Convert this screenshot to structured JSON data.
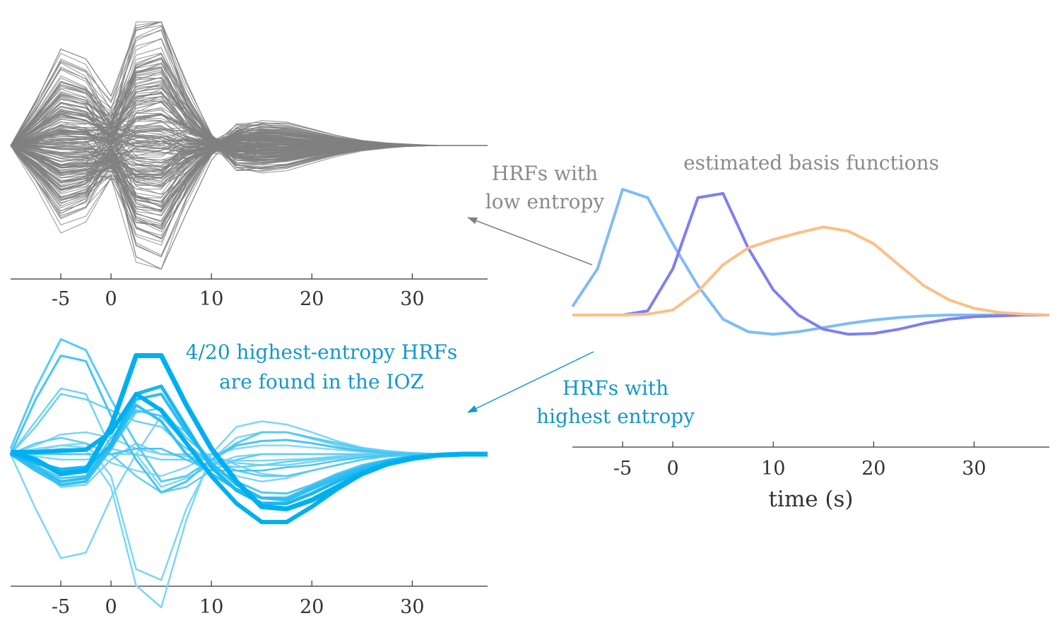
{
  "colors": {
    "gray_traces": "#808080",
    "gray_text": "#8a8a8a",
    "blue_text": "#1597c9",
    "blue_dark": "#00aff0",
    "blue_light": "#b3e6f7",
    "basis_1": "#7fbcf5",
    "basis_2": "#7f7ff0",
    "basis_3": "#fdbf86",
    "axis": "#333333"
  },
  "annotations": {
    "low_entropy": [
      "HRFs with",
      "low entropy"
    ],
    "high_entropy": [
      "HRFs with",
      "highest entropy"
    ],
    "basis_title": "estimated basis functions",
    "ioz_note": [
      "4/20 highest-entropy HRFs",
      "are found in the IOZ"
    ]
  },
  "chart_data": [
    {
      "id": "low-entropy-hrfs",
      "type": "line",
      "title": "",
      "xlabel": "",
      "ylabel": "",
      "xlim": [
        -10,
        37.5
      ],
      "ylim": [
        -1,
        1
      ],
      "xticks": [
        -5,
        0,
        10,
        20,
        30
      ],
      "x": [
        -10,
        -7.5,
        -5,
        -2.5,
        0,
        2.5,
        5,
        7.5,
        10,
        12.5,
        15,
        17.5,
        20,
        22.5,
        25,
        27.5,
        30,
        32.5,
        35,
        37.5
      ],
      "series_count": 200,
      "series_examples": [
        {
          "values": [
            0,
            0.35,
            0.78,
            0.7,
            0.4,
            0.95,
            1.0,
            0.35,
            0.02,
            -0.2,
            -0.18,
            -0.15,
            -0.1,
            -0.06,
            -0.03,
            -0.01,
            0,
            0,
            0,
            0
          ]
        },
        {
          "values": [
            0,
            -0.28,
            -0.55,
            -0.45,
            -0.05,
            -0.9,
            -1.0,
            -0.55,
            -0.12,
            0.12,
            0.18,
            0.18,
            0.13,
            0.08,
            0.04,
            0.02,
            0.01,
            0,
            0,
            0
          ]
        },
        {
          "values": [
            0,
            0.1,
            0.25,
            0.2,
            0.1,
            0.3,
            0.35,
            0.15,
            0.0,
            -0.1,
            -0.12,
            -0.1,
            -0.07,
            -0.04,
            -0.02,
            -0.01,
            0,
            0,
            0,
            0
          ]
        },
        {
          "values": [
            0,
            -0.15,
            -0.3,
            -0.25,
            0.1,
            -0.4,
            -0.5,
            -0.3,
            -0.05,
            0.05,
            0.08,
            0.08,
            0.06,
            0.04,
            0.02,
            0.01,
            0,
            0,
            0,
            0
          ]
        }
      ]
    },
    {
      "id": "basis-functions",
      "type": "line",
      "title": "estimated basis functions",
      "xlabel": "time (s)",
      "ylabel": "",
      "xlim": [
        -10,
        37.5
      ],
      "ylim": [
        -0.25,
        1.6
      ],
      "xticks": [
        -5,
        0,
        10,
        20,
        30
      ],
      "x": [
        -10,
        -7.5,
        -5,
        -2.5,
        0,
        2.5,
        5,
        7.5,
        10,
        12.5,
        15,
        17.5,
        20,
        22.5,
        25,
        27.5,
        30,
        32.5,
        35,
        37.5
      ],
      "series": [
        {
          "values": [
            0.1,
            0.55,
            1.5,
            1.4,
            0.85,
            0.35,
            -0.05,
            -0.2,
            -0.23,
            -0.2,
            -0.15,
            -0.1,
            -0.06,
            -0.03,
            -0.01,
            0,
            0,
            0,
            0,
            0
          ]
        },
        {
          "values": [
            0,
            0,
            0,
            0.05,
            0.55,
            1.4,
            1.45,
            0.8,
            0.3,
            0.0,
            -0.17,
            -0.23,
            -0.22,
            -0.17,
            -0.1,
            -0.05,
            -0.02,
            -0.01,
            0,
            0
          ]
        },
        {
          "values": [
            0,
            0,
            0,
            0.01,
            0.06,
            0.28,
            0.6,
            0.8,
            0.9,
            0.98,
            1.05,
            1.0,
            0.85,
            0.6,
            0.35,
            0.18,
            0.08,
            0.03,
            0.01,
            0
          ]
        }
      ]
    },
    {
      "id": "high-entropy-hrfs",
      "type": "line",
      "title": "",
      "xlabel": "",
      "ylabel": "",
      "xlim": [
        -10,
        37.5
      ],
      "ylim": [
        -1,
        1
      ],
      "xticks": [
        -5,
        0,
        10,
        20,
        30
      ],
      "x": [
        -10,
        -7.5,
        -5,
        -2.5,
        0,
        2.5,
        5,
        7.5,
        10,
        12.5,
        15,
        17.5,
        20,
        22.5,
        25,
        27.5,
        30,
        32.5,
        35,
        37.5
      ],
      "series": [
        {
          "values": [
            0.02,
            -0.05,
            -0.18,
            -0.15,
            0.25,
            0.9,
            0.9,
            0.45,
            0.05,
            -0.25,
            -0.48,
            -0.5,
            -0.42,
            -0.3,
            -0.18,
            -0.09,
            -0.04,
            -0.01,
            0,
            0
          ],
          "width": 7,
          "shade": 1.0
        },
        {
          "values": [
            0.02,
            0.02,
            0.03,
            0.04,
            0.2,
            0.55,
            0.4,
            0.1,
            -0.2,
            -0.45,
            -0.62,
            -0.62,
            -0.48,
            -0.32,
            -0.18,
            -0.09,
            -0.04,
            -0.01,
            0,
            0
          ],
          "width": 6,
          "shade": 1.0
        },
        {
          "values": [
            0.0,
            -0.08,
            -0.14,
            -0.12,
            0.08,
            0.55,
            0.62,
            0.25,
            -0.12,
            -0.33,
            -0.45,
            -0.45,
            -0.36,
            -0.25,
            -0.15,
            -0.07,
            -0.03,
            -0.01,
            0,
            0
          ],
          "width": 5,
          "shade": 0.85
        },
        {
          "values": [
            0.0,
            -0.15,
            -0.28,
            -0.25,
            0.05,
            0.45,
            0.3,
            0.0,
            -0.18,
            -0.32,
            -0.4,
            -0.4,
            -0.3,
            -0.2,
            -0.12,
            -0.06,
            -0.02,
            -0.01,
            0,
            0
          ],
          "width": 4,
          "shade": 0.7
        },
        {
          "values": [
            0.05,
            0.6,
            1.05,
            0.95,
            0.5,
            0.1,
            -0.25,
            -0.2,
            -0.05,
            0.1,
            0.2,
            0.2,
            0.15,
            0.1,
            0.05,
            0.02,
            0.01,
            0,
            0,
            0
          ],
          "width": 3,
          "shade": 0.5
        },
        {
          "values": [
            0.0,
            0.5,
            0.9,
            0.85,
            0.35,
            -0.05,
            -0.35,
            -0.25,
            -0.05,
            0.08,
            0.12,
            0.13,
            0.1,
            0.06,
            0.03,
            0.01,
            0,
            0,
            0,
            0
          ],
          "width": 3,
          "shade": 0.6
        },
        {
          "values": [
            0.0,
            0.25,
            0.55,
            0.5,
            0.4,
            0.3,
            0.25,
            0.05,
            -0.08,
            -0.12,
            -0.1,
            -0.07,
            -0.05,
            -0.03,
            -0.01,
            0,
            0,
            0,
            0,
            0
          ],
          "width": 2.5,
          "shade": 0.4
        },
        {
          "values": [
            0.0,
            -0.5,
            -0.95,
            -0.9,
            -0.4,
            0.0,
            0.35,
            0.2,
            -0.05,
            -0.2,
            -0.25,
            -0.22,
            -0.15,
            -0.1,
            -0.05,
            -0.02,
            -0.01,
            0,
            0,
            0
          ],
          "width": 2.5,
          "shade": 0.3
        },
        {
          "values": [
            0.0,
            0.02,
            0.05,
            0.04,
            -0.3,
            -1.2,
            -1.4,
            -0.6,
            0.0,
            0.25,
            0.3,
            0.27,
            0.2,
            0.12,
            0.06,
            0.03,
            0.01,
            0,
            0,
            0
          ],
          "width": 2.5,
          "shade": 0.3
        },
        {
          "values": [
            0.0,
            0.03,
            0.08,
            0.1,
            -0.2,
            -1.05,
            -1.15,
            -0.5,
            -0.05,
            0.15,
            0.2,
            0.2,
            0.14,
            0.08,
            0.04,
            0.02,
            0.01,
            0,
            0,
            0
          ],
          "width": 2.5,
          "shade": 0.3
        },
        {
          "values": [
            0.0,
            0.1,
            0.15,
            0.1,
            0.0,
            -0.2,
            -0.35,
            -0.3,
            -0.15,
            -0.05,
            0.0,
            0.0,
            0.0,
            0.0,
            0.0,
            0.0,
            0,
            0,
            0,
            0
          ],
          "width": 2.5,
          "shade": 0.45
        },
        {
          "values": [
            0.0,
            -0.02,
            -0.05,
            -0.05,
            0.0,
            0.0,
            -0.3,
            -0.22,
            -0.1,
            -0.02,
            0.0,
            0.0,
            0.0,
            0.0,
            0.0,
            0.0,
            0,
            0,
            0,
            0
          ],
          "width": 2.5,
          "shade": 0.3
        },
        {
          "values": [
            0.0,
            -0.1,
            -0.3,
            -0.28,
            -0.05,
            0.1,
            0.0,
            0.0,
            0.0,
            -0.1,
            -0.18,
            -0.2,
            -0.15,
            -0.1,
            -0.05,
            -0.02,
            -0.01,
            0,
            0,
            0
          ],
          "width": 2.5,
          "shade": 0.35
        },
        {
          "values": [
            0.0,
            -0.08,
            -0.18,
            -0.15,
            0.05,
            0.38,
            0.42,
            0.15,
            -0.05,
            -0.15,
            -0.2,
            -0.2,
            -0.15,
            -0.1,
            -0.05,
            -0.02,
            -0.01,
            0,
            0,
            0
          ],
          "width": 2.5,
          "shade": 0.5
        },
        {
          "values": [
            0.0,
            0.0,
            0.0,
            0.0,
            0.0,
            0.05,
            0.05,
            -0.05,
            -0.15,
            -0.15,
            -0.15,
            -0.12,
            -0.1,
            -0.06,
            -0.03,
            -0.01,
            0,
            0,
            0,
            0
          ],
          "width": 2.5,
          "shade": 0.6
        },
        {
          "values": [
            0.0,
            0.3,
            0.6,
            0.55,
            0.05,
            0.0,
            -0.05,
            -0.05,
            -0.05,
            -0.08,
            -0.1,
            -0.1,
            -0.07,
            -0.04,
            -0.02,
            -0.01,
            0,
            0,
            0,
            0
          ],
          "width": 2.5,
          "shade": 0.35
        },
        {
          "values": [
            0.0,
            -0.1,
            -0.22,
            -0.2,
            0.15,
            0.4,
            0.35,
            0.1,
            -0.1,
            -0.25,
            -0.35,
            -0.36,
            -0.28,
            -0.18,
            -0.1,
            -0.05,
            -0.02,
            -0.01,
            0,
            0
          ],
          "width": 3,
          "shade": 0.55
        },
        {
          "values": [
            0.0,
            0.05,
            0.08,
            0.06,
            -0.08,
            -0.15,
            -0.2,
            -0.12,
            0.0,
            0.05,
            0.08,
            0.08,
            0.06,
            0.04,
            0.02,
            0.01,
            0,
            0,
            0,
            0
          ],
          "width": 2.5,
          "shade": 0.25
        },
        {
          "values": [
            0.0,
            0.08,
            0.18,
            0.2,
            0.15,
            0.05,
            0.0,
            -0.02,
            -0.05,
            -0.06,
            -0.06,
            -0.05,
            -0.04,
            -0.02,
            -0.01,
            0,
            0,
            0,
            0,
            0
          ],
          "width": 2.5,
          "shade": 0.3
        },
        {
          "values": [
            0.0,
            -0.12,
            -0.25,
            -0.22,
            0.1,
            0.5,
            0.55,
            0.2,
            -0.08,
            -0.28,
            -0.4,
            -0.42,
            -0.32,
            -0.22,
            -0.12,
            -0.06,
            -0.02,
            -0.01,
            0,
            0
          ],
          "width": 4,
          "shade": 0.75
        }
      ]
    }
  ]
}
